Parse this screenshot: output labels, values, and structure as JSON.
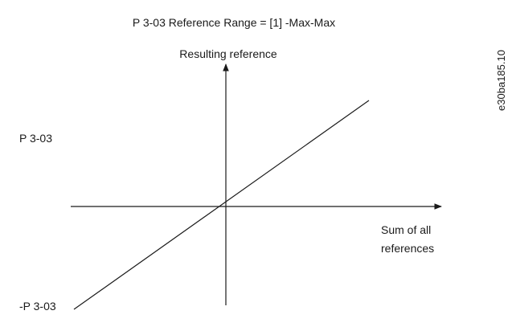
{
  "title": "P 3-03 Reference Range = [1] -Max-Max",
  "y_axis_label": "Resulting reference",
  "x_axis_label": [
    "Sum of all",
    "references"
  ],
  "upper_label": "P 3-03",
  "lower_label": "-P 3-03",
  "figure_id": "e30ba185.10"
}
